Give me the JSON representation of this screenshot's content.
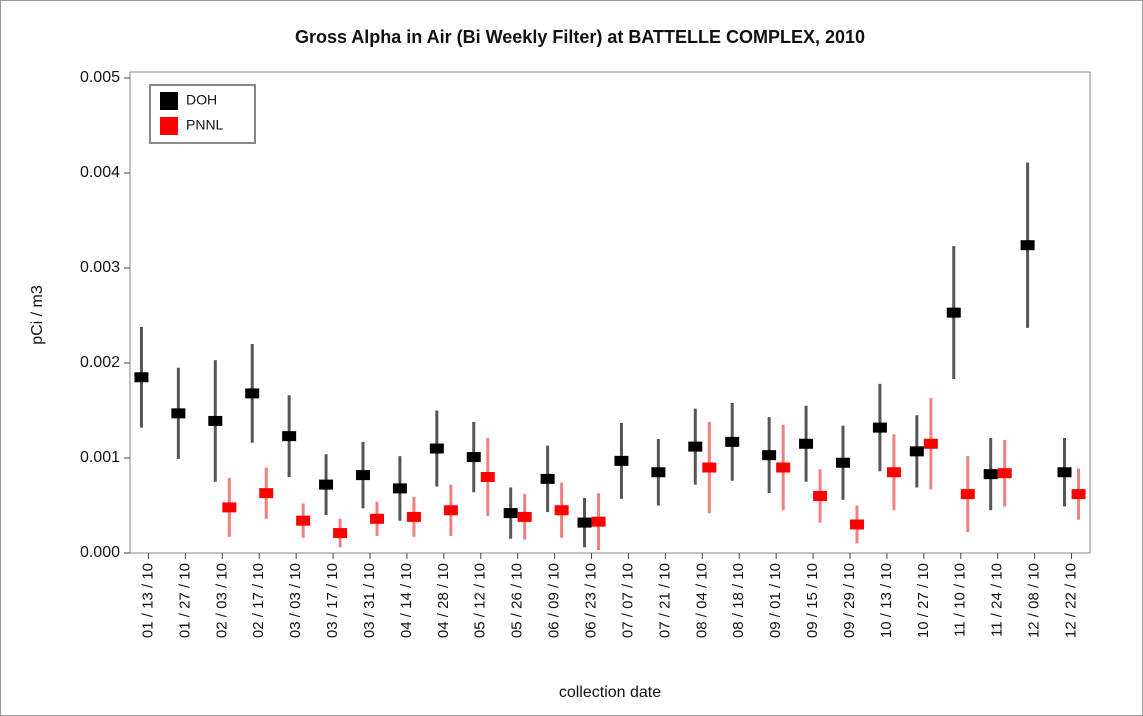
{
  "chart_data": {
    "type": "errorbar",
    "title": "Gross Alpha in Air (Bi Weekly Filter) at BATTELLE COMPLEX, 2010",
    "xlabel": "collection date",
    "ylabel": "pCi / m3",
    "categories": [
      "01 / 13 / 10",
      "01 / 27 / 10",
      "02 / 03 / 10",
      "02 / 17 / 10",
      "03 / 03 / 10",
      "03 / 17 / 10",
      "03 / 31 / 10",
      "04 / 14 / 10",
      "04 / 28 / 10",
      "05 / 12 / 10",
      "05 / 26 / 10",
      "06 / 09 / 10",
      "06 / 23 / 10",
      "07 / 07 / 10",
      "07 / 21 / 10",
      "08 / 04 / 10",
      "08 / 18 / 10",
      "09 / 01 / 10",
      "09 / 15 / 10",
      "09 / 29 / 10",
      "10 / 13 / 10",
      "10 / 27 / 10",
      "11 / 10 / 10",
      "11 / 24 / 10",
      "12 / 08 / 10",
      "12 / 22 / 10"
    ],
    "series": [
      {
        "name": "DOH",
        "color": "#000000",
        "error_color": "#555555",
        "values": [
          0.00185,
          0.00147,
          0.00139,
          0.00168,
          0.00123,
          0.00072,
          0.00082,
          0.00068,
          0.0011,
          0.00101,
          0.00042,
          0.00078,
          0.00032,
          0.00097,
          0.00085,
          0.00112,
          0.00117,
          0.00103,
          0.00115,
          0.00095,
          0.00132,
          0.00107,
          0.00253,
          0.00083,
          0.00324,
          0.00085
        ],
        "errors": [
          0.00053,
          0.00048,
          0.00064,
          0.00052,
          0.00043,
          0.00032,
          0.00035,
          0.00034,
          0.0004,
          0.00037,
          0.00027,
          0.00035,
          0.00026,
          0.0004,
          0.00035,
          0.0004,
          0.00041,
          0.0004,
          0.0004,
          0.00039,
          0.00046,
          0.00038,
          0.0007,
          0.00038,
          0.00087,
          0.00036
        ]
      },
      {
        "name": "PNNL",
        "color": "#ff0000",
        "error_color": "#f08080",
        "values": [
          null,
          null,
          0.00048,
          0.00063,
          0.00034,
          0.00021,
          0.00036,
          0.00038,
          0.00045,
          0.0008,
          0.00038,
          0.00045,
          0.00033,
          null,
          null,
          0.0009,
          null,
          0.0009,
          0.0006,
          0.0003,
          0.00085,
          0.00115,
          0.00062,
          0.00084,
          null,
          0.00062
        ],
        "errors": [
          null,
          null,
          0.00031,
          0.00027,
          0.00018,
          0.00015,
          0.00018,
          0.00021,
          0.00027,
          0.00041,
          0.00024,
          0.00029,
          0.0003,
          null,
          null,
          0.00048,
          null,
          0.00045,
          0.00028,
          0.0002,
          0.0004,
          0.00048,
          0.0004,
          0.00035,
          null,
          0.00027
        ]
      }
    ],
    "ylim": [
      0,
      0.005
    ],
    "yticks": [
      {
        "value": 0,
        "label": "0.000"
      },
      0.001,
      0.002,
      0.003,
      0.004,
      0.005
    ],
    "legend": "upper left"
  }
}
